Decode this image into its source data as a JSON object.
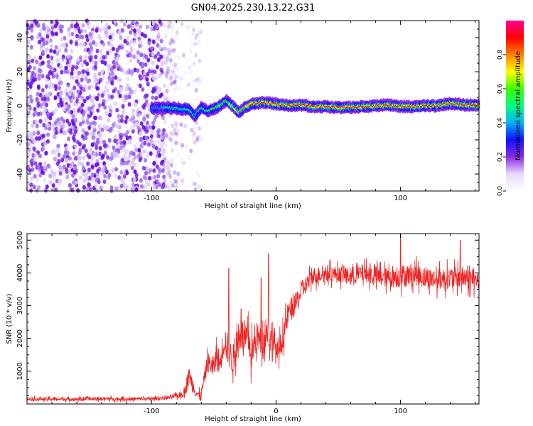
{
  "title": "GN04.2025.230.13.22.G31",
  "chart_data": [
    {
      "type": "heatmap",
      "title": "GN04.2025.230.13.22.G31",
      "xlabel": "Height of straight line (km)",
      "ylabel": "Frequency (Hz)",
      "xlim": [
        -200,
        163
      ],
      "ylim": [
        -50,
        50
      ],
      "x_ticks": [
        -100,
        0,
        100
      ],
      "x_tick_labels": [
        "-100",
        "0",
        "100"
      ],
      "y_ticks": [
        -40,
        -20,
        0,
        20,
        40
      ],
      "y_tick_labels": [
        "-40",
        "-20",
        "0",
        "20",
        "40"
      ],
      "colorbar": {
        "label": "Normalized spectral amplitude",
        "range": [
          0,
          1
        ],
        "ticks": [
          0.0,
          0.2,
          0.4,
          0.6,
          0.8
        ],
        "tick_labels": [
          "0.0",
          "0.2",
          "0.4",
          "0.6",
          "0.8"
        ],
        "colors": [
          "#ffffff",
          "#e8d8ff",
          "#8a2be2",
          "#1010ff",
          "#00b0ff",
          "#00ff80",
          "#40ff00",
          "#ffff00",
          "#ff8000",
          "#ff0000",
          "#ff0090"
        ]
      },
      "noise_region": {
        "x_range": [
          -200,
          -80
        ],
        "amplitude": 0.25
      },
      "ridge": {
        "x": [
          -100,
          -90,
          -80,
          -75,
          -70,
          -65,
          -60,
          -55,
          -50,
          -45,
          -40,
          -35,
          -30,
          -25,
          -20,
          -10,
          0,
          10,
          20,
          30,
          40,
          50,
          60,
          70,
          80,
          90,
          100,
          110,
          120,
          130,
          140,
          150,
          163
        ],
        "frequency": [
          -1.5,
          -1,
          -1.5,
          -2,
          -2,
          -6,
          -1,
          -3,
          -2,
          0,
          3,
          0,
          -4,
          -1,
          1,
          2,
          1,
          0,
          0.5,
          -0.5,
          -0.5,
          -1,
          -1,
          -0.5,
          0,
          0.5,
          -0.5,
          -0.5,
          0,
          0,
          1.5,
          0.5,
          0.5
        ],
        "amplitude": [
          0.35,
          0.45,
          0.5,
          0.55,
          0.5,
          0.5,
          0.55,
          0.55,
          0.6,
          0.65,
          0.6,
          0.7,
          0.75,
          0.8,
          0.85,
          0.85,
          0.9,
          0.92,
          0.92,
          0.9,
          0.9,
          0.9,
          0.92,
          0.9,
          0.92,
          0.92,
          0.88,
          0.9,
          0.92,
          0.9,
          0.9,
          0.92,
          0.92
        ]
      }
    },
    {
      "type": "line",
      "xlabel": "Height of straight line (km)",
      "ylabel": "SNR (10 * v/v)",
      "xlim": [
        -200,
        163
      ],
      "ylim": [
        0,
        5200
      ],
      "x_ticks": [
        -100,
        0,
        100
      ],
      "x_tick_labels": [
        "-100",
        "0",
        "100"
      ],
      "y_ticks": [
        1000,
        2000,
        3000,
        4000,
        5000
      ],
      "y_tick_labels": [
        "1000",
        "2000",
        "3000",
        "4000",
        "5000"
      ],
      "series_color": "#ee2222",
      "series": [
        {
          "x": [
            -200,
            -180,
            -160,
            -140,
            -120,
            -100,
            -90,
            -85,
            -80,
            -75,
            -72,
            -70,
            -68,
            -65,
            -62,
            -60,
            -55,
            -50,
            -48,
            -45,
            -42,
            -40,
            -35,
            -30,
            -28,
            -25,
            -22,
            -20,
            -15,
            -12,
            -10,
            -8,
            -5,
            -2,
            0,
            5,
            10,
            15,
            20,
            25,
            30,
            40,
            50,
            60,
            70,
            80,
            90,
            100,
            110,
            120,
            130,
            140,
            150,
            163
          ],
          "y": [
            150,
            150,
            150,
            160,
            150,
            160,
            180,
            200,
            250,
            300,
            500,
            900,
            700,
            400,
            250,
            300,
            1300,
            1100,
            1500,
            1200,
            2000,
            1800,
            1300,
            2000,
            2200,
            1900,
            2000,
            1500,
            2100,
            1800,
            1900,
            2300,
            2000,
            2200,
            1500,
            1900,
            2800,
            3000,
            3400,
            3700,
            3900,
            4000,
            3950,
            3900,
            4000,
            3900,
            3850,
            3900,
            3950,
            3850,
            3800,
            3850,
            3850,
            3750
          ],
          "noise": [
            100,
            100,
            100,
            100,
            100,
            100,
            100,
            120,
            150,
            200,
            300,
            400,
            400,
            300,
            250,
            300,
            500,
            600,
            800,
            700,
            900,
            900,
            800,
            900,
            1000,
            900,
            900,
            1000,
            800,
            900,
            800,
            900,
            900,
            1000,
            600,
            700,
            700,
            600,
            500,
            500,
            500,
            450,
            450,
            500,
            500,
            550,
            550,
            650,
            600,
            600,
            600,
            600,
            600,
            550
          ],
          "spikes": [
            {
              "x": -38,
              "y": 4150
            },
            {
              "x": -28,
              "y": 2900
            },
            {
              "x": -12,
              "y": 3850
            },
            {
              "x": -6,
              "y": 4600
            },
            {
              "x": -3,
              "y": 1300
            },
            {
              "x": 100,
              "y": 5200
            },
            {
              "x": 148,
              "y": 5000
            }
          ]
        }
      ]
    }
  ]
}
